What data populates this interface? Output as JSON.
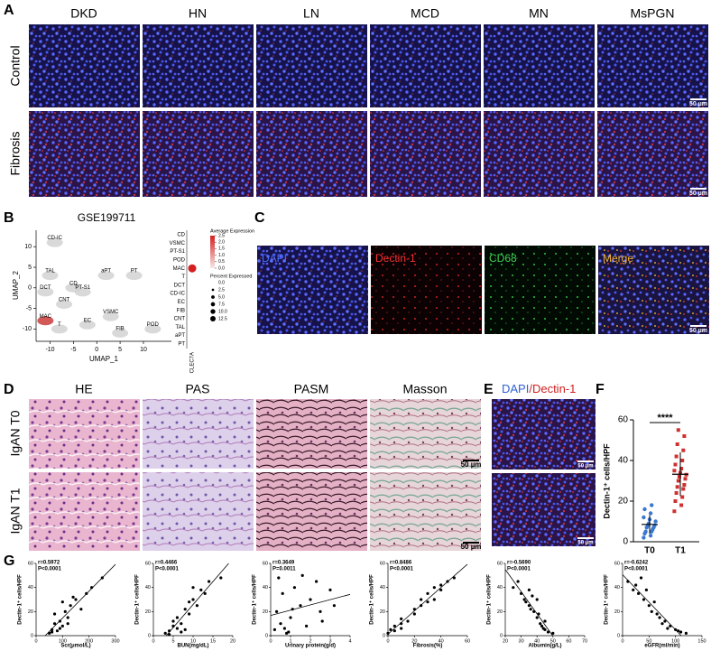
{
  "A": {
    "label": "A",
    "columns": [
      "DKD",
      "HN",
      "LN",
      "MCD",
      "MN",
      "MsPGN"
    ],
    "rows": [
      "Control",
      "Fibrosis"
    ],
    "scale_bar": "50 µm"
  },
  "B": {
    "label": "B",
    "title": "GSE199711",
    "umap": {
      "x_label": "UMAP_1",
      "y_label": "UMAP_2",
      "xlim": [
        -13,
        16
      ],
      "ylim": [
        -13,
        14
      ],
      "xticks": [
        -10,
        -5,
        0,
        5,
        10
      ],
      "yticks": [
        -10,
        -5,
        0,
        5,
        10
      ],
      "clusters": [
        {
          "name": "CD-IC",
          "x": -9,
          "y": 11
        },
        {
          "name": "TAL",
          "x": -10,
          "y": 3
        },
        {
          "name": "DCT",
          "x": -11,
          "y": -1
        },
        {
          "name": "CD",
          "x": -5,
          "y": 0
        },
        {
          "name": "PT-S1",
          "x": -3,
          "y": -1
        },
        {
          "name": "aPT",
          "x": 2,
          "y": 3
        },
        {
          "name": "PT",
          "x": 8,
          "y": 3
        },
        {
          "name": "CNT",
          "x": -7,
          "y": -4
        },
        {
          "name": "MAC",
          "x": -11,
          "y": -8
        },
        {
          "name": "T",
          "x": -8,
          "y": -10
        },
        {
          "name": "EC",
          "x": -2,
          "y": -9
        },
        {
          "name": "VSMC",
          "x": 3,
          "y": -7
        },
        {
          "name": "FIB",
          "x": 5,
          "y": -11
        },
        {
          "name": "POD",
          "x": 12,
          "y": -10
        }
      ]
    },
    "dotplot": {
      "gene": "CLEC7A",
      "categories": [
        "CD",
        "VSMC",
        "PT-S1",
        "POD",
        "MAC",
        "T",
        "DCT",
        "CD-IC",
        "EC",
        "FIB",
        "CNT",
        "TAL",
        "aPT",
        "PT"
      ],
      "average_expression": [
        0,
        0,
        0,
        0,
        2.5,
        0,
        0,
        0,
        0,
        0,
        0,
        0,
        0,
        0
      ],
      "percent_expressed": [
        0,
        0,
        0,
        0,
        12.5,
        0,
        0,
        0,
        0,
        0,
        0,
        0,
        0,
        0
      ],
      "color_legend_title": "Average Expression",
      "color_ticks": [
        2.5,
        {
          "value": 2,
          "label": "2.0"
        },
        1.5,
        {
          "value": 1,
          "label": "1.0"
        },
        0.5,
        {
          "value": 0,
          "label": "0.0"
        }
      ],
      "size_legend_title": "Percent Expressed",
      "size_ticks": [
        {
          "value": 0,
          "label": "0.0"
        },
        2.5,
        {
          "value": 5,
          "label": "5.0"
        },
        7.5,
        {
          "value": 10,
          "label": "10.0"
        },
        12.5
      ]
    }
  },
  "C": {
    "label": "C",
    "channels": [
      "DAPI",
      "Dectin-1",
      "CD68",
      "Merge"
    ],
    "scale_bar": "50 µm"
  },
  "D": {
    "label": "D",
    "columns": [
      "HE",
      "PAS",
      "PASM",
      "Masson"
    ],
    "rows": [
      "IgAN T0",
      "IgAN T1"
    ],
    "scale_bar": "50 µm"
  },
  "E": {
    "label": "E",
    "title_parts": [
      "DAPI",
      "/Dectin-1"
    ],
    "scale_bar": "50 µm"
  },
  "F": {
    "label": "F",
    "y_label": "Dectin-1⁺ cells/HPF",
    "ylim": [
      0,
      60
    ],
    "yticks": [
      0,
      20,
      40,
      60
    ],
    "significance": "****",
    "groups": [
      {
        "name": "T0",
        "values": [
          2,
          3,
          4,
          5,
          5,
          6,
          7,
          7,
          8,
          8,
          9,
          10,
          11,
          12,
          14,
          16,
          18
        ]
      },
      {
        "name": "T1",
        "values": [
          15,
          18,
          20,
          22,
          24,
          26,
          27,
          28,
          30,
          31,
          32,
          33,
          34,
          35,
          36,
          38,
          40,
          42,
          45,
          48,
          52,
          55
        ]
      }
    ]
  },
  "G": {
    "label": "G",
    "y_label": "Dectin-1⁺ cells/HPF",
    "ylim": [
      0,
      60
    ],
    "yticks": [
      0,
      20,
      40,
      60
    ],
    "plots": [
      {
        "r": "r=0.5972",
        "p": "P<0.0001",
        "x_label": "Scr(μmol/L)",
        "xlim": [
          0,
          300
        ],
        "xticks": [
          0,
          100,
          200,
          300
        ],
        "x": [
          50,
          60,
          70,
          80,
          90,
          100,
          110,
          120,
          130,
          150,
          170,
          190,
          210,
          250,
          70,
          90,
          100,
          140,
          60,
          120
        ],
        "y": [
          2,
          5,
          10,
          4,
          12,
          8,
          20,
          15,
          25,
          30,
          22,
          35,
          40,
          48,
          18,
          6,
          28,
          32,
          3,
          10
        ]
      },
      {
        "r": "r=0.4466",
        "p": "P<0.0001",
        "x_label": "BUN(mg/dL)",
        "xlim": [
          0,
          20
        ],
        "xticks": [
          0,
          5,
          10,
          15,
          20
        ],
        "x": [
          3,
          4,
          5,
          6,
          6,
          7,
          8,
          8,
          9,
          10,
          11,
          12,
          14,
          17,
          5,
          7,
          9,
          13,
          4,
          10
        ],
        "y": [
          2,
          4,
          8,
          6,
          15,
          10,
          22,
          5,
          28,
          30,
          25,
          38,
          45,
          48,
          12,
          3,
          18,
          35,
          1,
          40
        ]
      },
      {
        "r": "r=0.3649",
        "p": "P=0.0011",
        "x_label": "Urinary protein(g/d)",
        "xlim": [
          0,
          4
        ],
        "xticks": [
          0,
          1,
          2,
          3,
          4
        ],
        "x": [
          0.2,
          0.3,
          0.5,
          0.6,
          0.8,
          1,
          1.2,
          1.5,
          1.8,
          2,
          2.3,
          2.6,
          3,
          3.2,
          0.4,
          0.7,
          1.1,
          1.6,
          2.5,
          0.9
        ],
        "y": [
          5,
          20,
          10,
          35,
          2,
          15,
          40,
          25,
          8,
          30,
          45,
          12,
          38,
          25,
          48,
          6,
          22,
          50,
          20,
          3
        ]
      },
      {
        "r": "r=0.8486",
        "p": "P<0.0001",
        "x_label": "Fibrosis(%)",
        "xlim": [
          0,
          60
        ],
        "xticks": [
          0,
          20,
          40,
          60
        ],
        "x": [
          0,
          2,
          5,
          5,
          10,
          10,
          15,
          20,
          20,
          25,
          30,
          30,
          35,
          35,
          40,
          45,
          50,
          10,
          25,
          40
        ],
        "y": [
          2,
          5,
          4,
          8,
          10,
          14,
          12,
          18,
          22,
          25,
          28,
          35,
          30,
          40,
          38,
          45,
          48,
          6,
          30,
          42
        ]
      },
      {
        "r": "r=-0.5690",
        "p": "P<0.0001",
        "x_label": "Albumin(g/L)",
        "xlim": [
          20,
          70
        ],
        "xticks": [
          20,
          30,
          40,
          50,
          60,
          70
        ],
        "x": [
          25,
          28,
          30,
          32,
          35,
          35,
          38,
          40,
          40,
          42,
          43,
          45,
          45,
          47,
          50,
          33,
          37,
          44,
          41,
          36
        ],
        "y": [
          40,
          45,
          35,
          30,
          38,
          25,
          20,
          30,
          15,
          10,
          8,
          5,
          12,
          3,
          2,
          28,
          33,
          6,
          18,
          22
        ]
      },
      {
        "r": "r=-0.6242",
        "p": "P<0.0001",
        "x_label": "eGFR(ml/min)",
        "xlim": [
          0,
          150
        ],
        "xticks": [
          0,
          50,
          100,
          150
        ],
        "x": [
          10,
          20,
          25,
          30,
          40,
          45,
          50,
          55,
          60,
          70,
          80,
          90,
          100,
          110,
          120,
          35,
          65,
          75,
          85,
          105
        ],
        "y": [
          45,
          38,
          42,
          35,
          30,
          38,
          25,
          20,
          28,
          15,
          12,
          8,
          5,
          3,
          2,
          48,
          18,
          10,
          6,
          4
        ]
      }
    ]
  }
}
